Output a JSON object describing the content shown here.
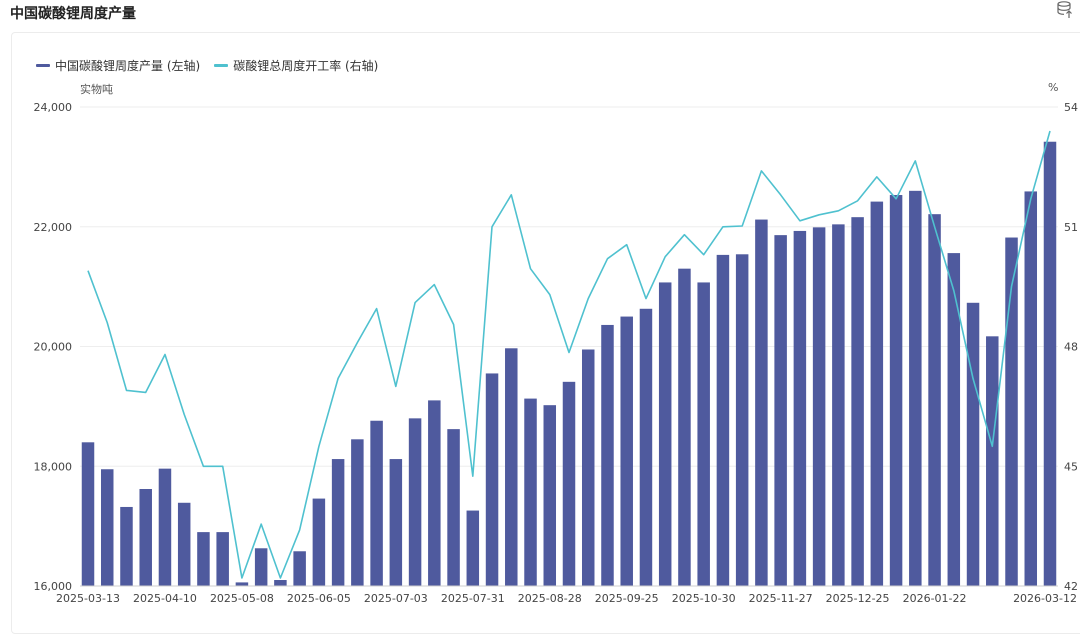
{
  "page": {
    "title": "中国碳酸锂周度产量"
  },
  "icons": {
    "export": "database-export-icon"
  },
  "colors": {
    "bar": "#4f5a9e",
    "line": "#4fc1cf",
    "grid": "#eeeeee",
    "axis_text": "#444444"
  },
  "chart_data": {
    "type": "bar+line",
    "legend_position": "top-left",
    "grid": true,
    "y_left": {
      "unit": "实物吨",
      "ticks": [
        "16,000",
        "18,000",
        "20,000",
        "22,000",
        "24,000"
      ],
      "range": [
        16000,
        24000
      ]
    },
    "y_right": {
      "unit": "%",
      "ticks": [
        "42",
        "45",
        "48",
        "51",
        "54"
      ],
      "range": [
        42,
        54
      ]
    },
    "x_tick_labels": [
      "2025-03-13",
      "2025-04-10",
      "2025-05-08",
      "2025-06-05",
      "2025-07-03",
      "2025-07-31",
      "2025-08-28",
      "2025-09-25",
      "2025-10-30",
      "2025-11-27",
      "2025-12-25",
      "2026-01-22",
      "2026-03-12"
    ],
    "x_tick_positions": [
      0,
      4,
      8,
      12,
      16,
      20,
      24,
      28,
      32,
      36,
      40,
      44,
      50
    ],
    "series": [
      {
        "name": "中国碳酸锂周度产量 (左轴)",
        "type": "bar",
        "axis": "left",
        "values": [
          18400,
          17950,
          17320,
          17620,
          17960,
          17390,
          16900,
          16900,
          16060,
          16630,
          16100,
          16580,
          17460,
          18120,
          18450,
          18760,
          18120,
          18800,
          19100,
          18620,
          17260,
          19550,
          19970,
          19130,
          19020,
          19410,
          19950,
          20360,
          20500,
          20630,
          21070,
          21300,
          21070,
          21530,
          21540,
          22120,
          21860,
          21930,
          21990,
          22040,
          22160,
          22420,
          22530,
          22600,
          22210,
          21560,
          20730,
          20170,
          21820,
          22590,
          23420
        ]
      },
      {
        "name": "碳酸锂总周度开工率 (右轴)",
        "type": "line",
        "axis": "right",
        "values": [
          49.9,
          48.6,
          46.9,
          46.85,
          47.8,
          46.3,
          45.0,
          45.0,
          42.2,
          43.55,
          42.2,
          43.4,
          45.5,
          47.2,
          48.1,
          48.95,
          47.0,
          49.1,
          49.55,
          48.55,
          44.75,
          51.0,
          51.8,
          49.95,
          49.3,
          47.85,
          49.2,
          50.2,
          50.55,
          49.2,
          50.25,
          50.8,
          50.3,
          51.0,
          51.02,
          52.4,
          51.8,
          51.15,
          51.3,
          51.4,
          51.65,
          52.25,
          51.7,
          52.65,
          51.0,
          49.4,
          47.2,
          45.5,
          49.5,
          51.7,
          53.4
        ]
      }
    ]
  }
}
